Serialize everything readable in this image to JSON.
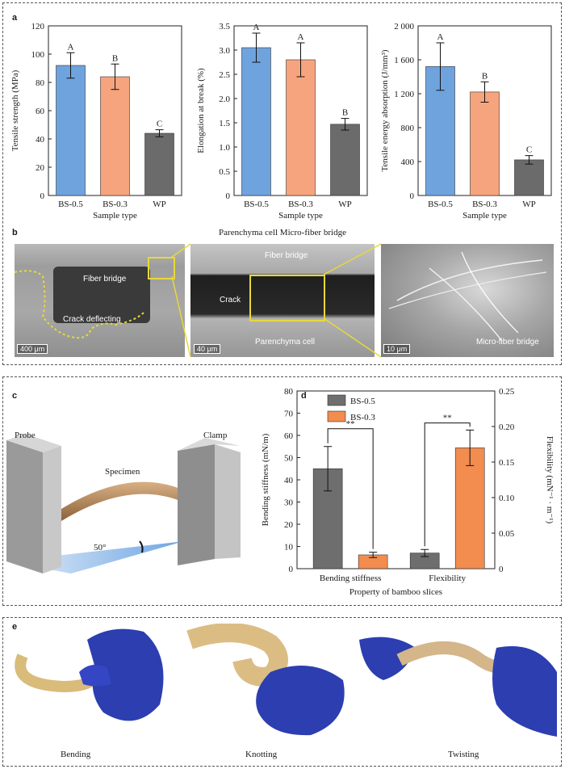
{
  "panel_labels": {
    "a": "a",
    "b": "b",
    "c": "c",
    "d": "d",
    "e": "e"
  },
  "colors": {
    "bs05": "#6fa3de",
    "bs03": "#f6a47e",
    "wp": "#6b6b6b",
    "d_bs05": "#6e6e6e",
    "d_bs03": "#f28c4f"
  },
  "chart_data": [
    {
      "type": "bar",
      "id": "tensile-strength",
      "categories": [
        "BS-0.5",
        "BS-0.3",
        "WP"
      ],
      "values": [
        92,
        84,
        44
      ],
      "errors": [
        9,
        9,
        2.5
      ],
      "letters": [
        "A",
        "B",
        "C"
      ],
      "xlabel": "Sample type",
      "ylabel": "Tensile strength (MPa)",
      "ylim": [
        0,
        120
      ],
      "yticks": [
        "0",
        "20",
        "40",
        "60",
        "80",
        "100",
        "120"
      ]
    },
    {
      "type": "bar",
      "id": "elongation",
      "categories": [
        "BS-0.5",
        "BS-0.3",
        "WP"
      ],
      "values": [
        3.05,
        2.8,
        1.47
      ],
      "errors": [
        0.3,
        0.35,
        0.12
      ],
      "letters": [
        "A",
        "A",
        "B"
      ],
      "xlabel": "Sample type",
      "ylabel": "Elongation at break (%)",
      "ylim": [
        0,
        3.5
      ],
      "yticks": [
        "0",
        "0.5",
        "1.0",
        "1.5",
        "2.0",
        "2.5",
        "3.0",
        "3.5"
      ]
    },
    {
      "type": "bar",
      "id": "energy-absorption",
      "categories": [
        "BS-0.5",
        "BS-0.3",
        "WP"
      ],
      "values": [
        1520,
        1220,
        420
      ],
      "errors": [
        280,
        120,
        50
      ],
      "letters": [
        "A",
        "B",
        "C"
      ],
      "xlabel": "Sample type",
      "ylabel": "Tensile energy absorption (J/mm³)",
      "ylim": [
        0,
        2000
      ],
      "yticks": [
        "0",
        "400",
        "800",
        "1 200",
        "1 600",
        "2 000"
      ]
    },
    {
      "type": "bar",
      "id": "stiffness-flexibility",
      "categories": [
        "Bending stiffness",
        "Flexibility"
      ],
      "series": [
        {
          "name": "BS-0.5",
          "values": [
            45,
            0.022
          ],
          "errors": [
            10,
            0.005
          ]
        },
        {
          "name": "BS-0.3",
          "values": [
            6.2,
            0.17
          ],
          "errors": [
            1.2,
            0.025
          ]
        }
      ],
      "axes": [
        "left",
        "right"
      ],
      "significance": [
        "**",
        "**"
      ],
      "xlabel": "Property of bamboo slices",
      "ylabel_left": "Bending stiffness (mN/m)",
      "ylabel_right": "Flexibility (mN⁻¹ · m⁻¹)",
      "ylim_left": [
        0,
        80
      ],
      "ylim_right": [
        0,
        0.25
      ],
      "yticks_left": [
        "0",
        "10",
        "20",
        "30",
        "40",
        "50",
        "60",
        "70",
        "80"
      ],
      "yticks_right": [
        "0",
        "0.05",
        "0.10",
        "0.15",
        "0.20",
        "0.25"
      ],
      "legend": "top-left"
    }
  ],
  "panel_b": {
    "title": "Parenchyma cell Micro-fiber bridge",
    "img1": {
      "fiber": "Fiber bridge",
      "crack": "Crack deflecting",
      "scale": "400 μm"
    },
    "img2": {
      "fiber": "Fiber bridge",
      "crack": "Crack",
      "paren": "Parenchyma cell",
      "scale": "40 μm"
    },
    "img3": {
      "micro": "Micro-fiber bridge",
      "scale": "10 μm"
    }
  },
  "panel_c": {
    "probe": "Probe",
    "clamp": "Clamp",
    "specimen": "Specimen",
    "angle": "50°"
  },
  "panel_e": {
    "bending": "Bending",
    "knotting": "Knotting",
    "twisting": "Twisting"
  }
}
